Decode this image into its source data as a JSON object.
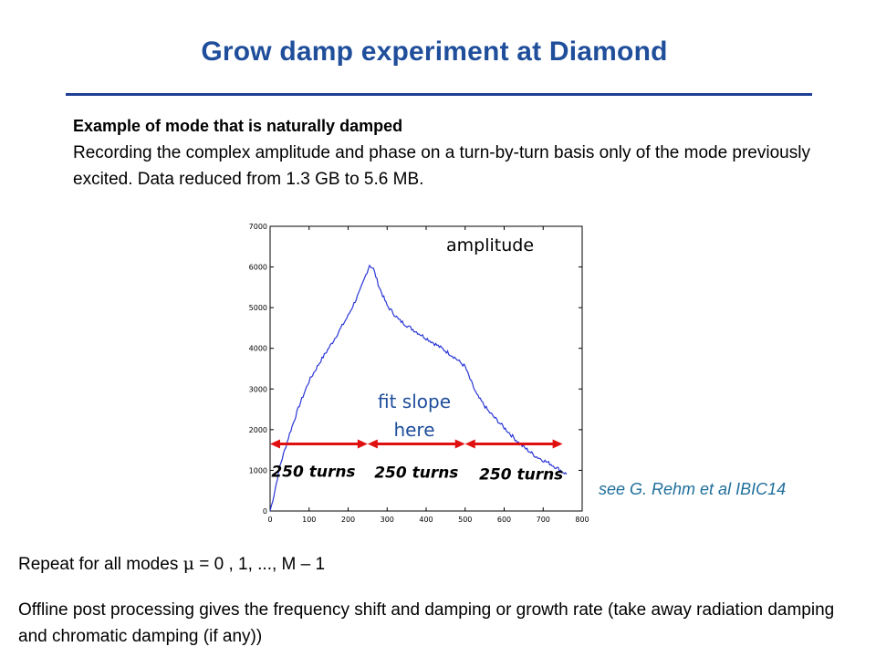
{
  "slide": {
    "title": "Grow damp experiment at Diamond",
    "intro_lead": "Example of mode that is naturally damped",
    "intro_body": "Recording the complex amplitude and phase on a turn-by-turn basis only of the mode previously excited. Data reduced from 1.3 GB to 5.6 MB.",
    "reference": "see G. Rehm et al IBIC14",
    "repeat_prefix": "Repeat for all modes ",
    "repeat_symbol": "μ",
    "repeat_suffix": " = 0 , 1, ..., M – 1",
    "offline": "Offline post processing gives the frequency shift and damping or growth rate (take away radiation damping and chromatic damping (if any))"
  },
  "chart_data": {
    "type": "line",
    "title": "",
    "xlabel": "",
    "ylabel": "",
    "xlim": [
      0,
      800
    ],
    "ylim": [
      0,
      7000
    ],
    "x_ticks": [
      "0",
      "100",
      "200",
      "300",
      "400",
      "500",
      "600",
      "700",
      "800"
    ],
    "y_ticks": [
      "0",
      "1000",
      "2000",
      "3000",
      "4000",
      "5000",
      "6000",
      "7000"
    ],
    "grid": false,
    "series": [
      {
        "color": "#2a36d6",
        "x": [
          0,
          10,
          25,
          50,
          75,
          100,
          130,
          160,
          200,
          230,
          255,
          265,
          280,
          300,
          330,
          360,
          400,
          440,
          470,
          500,
          510,
          530,
          560,
          600,
          640,
          680,
          720,
          745,
          760
        ],
        "y": [
          0,
          400,
          1100,
          1900,
          2600,
          3200,
          3700,
          4150,
          4800,
          5400,
          6050,
          5950,
          5500,
          5050,
          4700,
          4500,
          4250,
          4000,
          3800,
          3550,
          3300,
          2850,
          2450,
          2050,
          1650,
          1350,
          1150,
          1000,
          900
        ]
      }
    ],
    "annotations": {
      "series_label": "amplitude",
      "fit_label_line1": "fit slope",
      "fit_label_line2": "here",
      "arrow_color": "#e01010",
      "segments": [
        {
          "label": "250 turns",
          "x_start": 0,
          "x_end": 250
        },
        {
          "label": "250 turns",
          "x_start": 250,
          "x_end": 500
        },
        {
          "label": "250 turns",
          "x_start": 500,
          "x_end": 750
        }
      ],
      "segment_y": 1650
    }
  }
}
